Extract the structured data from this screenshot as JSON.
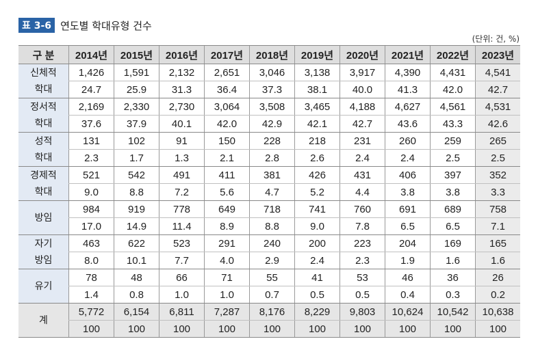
{
  "title": {
    "badge": "표 3-6",
    "text": "연도별 학대유형 건수"
  },
  "unit": "(단위: 건, %)",
  "table": {
    "header": [
      "구 분",
      "2014년",
      "2015년",
      "2016년",
      "2017년",
      "2018년",
      "2019년",
      "2020년",
      "2021년",
      "2022년",
      "2023년"
    ],
    "groups": [
      {
        "label": "신체적\n학대",
        "counts": [
          "1,426",
          "1,591",
          "2,132",
          "2,651",
          "3,046",
          "3,138",
          "3,917",
          "4,390",
          "4,431",
          "4,541"
        ],
        "percents": [
          "24.7",
          "25.9",
          "31.3",
          "36.4",
          "37.3",
          "38.1",
          "40.0",
          "41.3",
          "42.0",
          "42.7"
        ]
      },
      {
        "label": "정서적\n학대",
        "counts": [
          "2,169",
          "2,330",
          "2,730",
          "3,064",
          "3,508",
          "3,465",
          "4,188",
          "4,627",
          "4,561",
          "4,531"
        ],
        "percents": [
          "37.6",
          "37.9",
          "40.1",
          "42.0",
          "42.9",
          "42.1",
          "42.7",
          "43.6",
          "43.3",
          "42.6"
        ]
      },
      {
        "label": "성적\n학대",
        "counts": [
          "131",
          "102",
          "91",
          "150",
          "228",
          "218",
          "231",
          "260",
          "259",
          "265"
        ],
        "percents": [
          "2.3",
          "1.7",
          "1.3",
          "2.1",
          "2.8",
          "2.6",
          "2.4",
          "2.4",
          "2.5",
          "2.5"
        ]
      },
      {
        "label": "경제적\n학대",
        "counts": [
          "521",
          "542",
          "491",
          "411",
          "381",
          "426",
          "431",
          "406",
          "397",
          "352"
        ],
        "percents": [
          "9.0",
          "8.8",
          "7.2",
          "5.6",
          "4.7",
          "5.2",
          "4.4",
          "3.8",
          "3.8",
          "3.3"
        ]
      },
      {
        "label": "방임",
        "counts": [
          "984",
          "919",
          "778",
          "649",
          "718",
          "741",
          "760",
          "691",
          "689",
          "758"
        ],
        "percents": [
          "17.0",
          "14.9",
          "11.4",
          "8.9",
          "8.8",
          "9.0",
          "7.8",
          "6.5",
          "6.5",
          "7.1"
        ]
      },
      {
        "label": "자기\n방임",
        "counts": [
          "463",
          "622",
          "523",
          "291",
          "240",
          "200",
          "223",
          "204",
          "169",
          "165"
        ],
        "percents": [
          "8.0",
          "10.1",
          "7.7",
          "4.0",
          "2.9",
          "2.4",
          "2.3",
          "1.9",
          "1.6",
          "1.6"
        ]
      },
      {
        "label": "유기",
        "counts": [
          "78",
          "48",
          "66",
          "71",
          "55",
          "41",
          "53",
          "46",
          "36",
          "26"
        ],
        "percents": [
          "1.4",
          "0.8",
          "1.0",
          "1.0",
          "0.7",
          "0.5",
          "0.5",
          "0.4",
          "0.3",
          "0.2"
        ]
      },
      {
        "label": "계",
        "counts": [
          "5,772",
          "6,154",
          "6,811",
          "7,287",
          "8,176",
          "8,229",
          "9,803",
          "10,624",
          "10,542",
          "10,638"
        ],
        "percents": [
          "100",
          "100",
          "100",
          "100",
          "100",
          "100",
          "100",
          "100",
          "100",
          "100"
        ]
      }
    ]
  },
  "colors": {
    "badge": "#2a63a6",
    "label_bg": "#e3eaf4",
    "header_bg": "#dedede",
    "highlight_bg": "#ebebeb"
  }
}
